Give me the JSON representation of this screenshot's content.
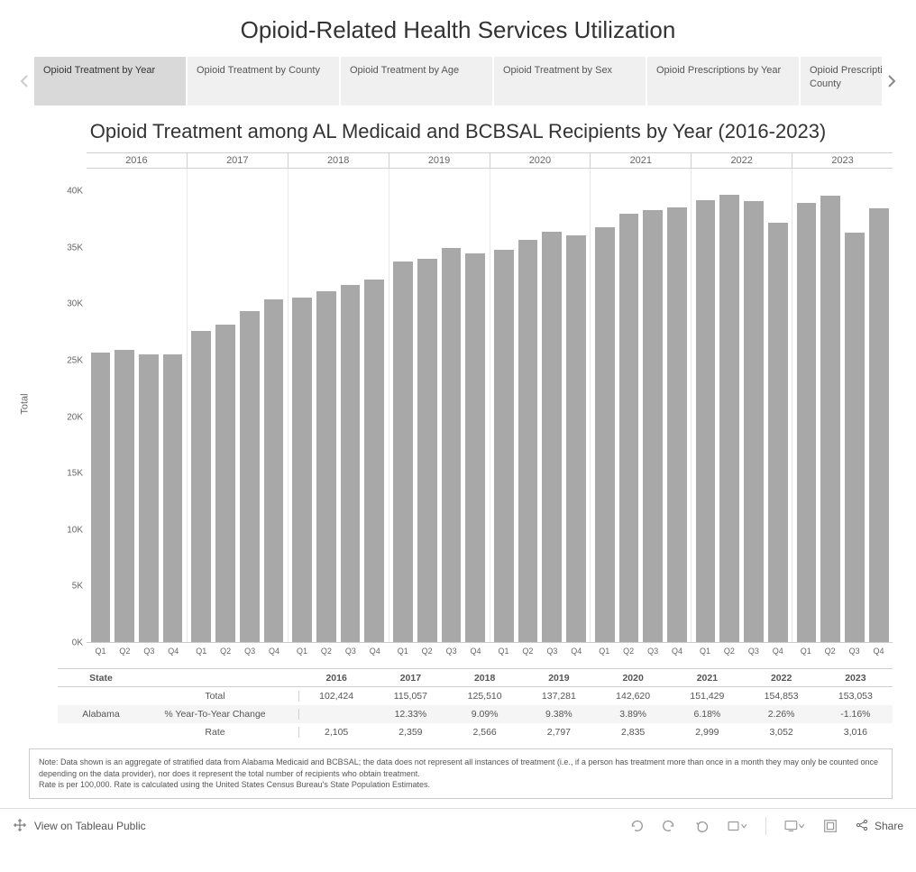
{
  "main_title": "Opioid-Related Health Services Utilization",
  "tabs": [
    {
      "label": "Opioid Treatment by Year",
      "active": true
    },
    {
      "label": "Opioid Treatment by County",
      "active": false
    },
    {
      "label": "Opioid Treatment by Age",
      "active": false
    },
    {
      "label": "Opioid Treatment by Sex",
      "active": false
    },
    {
      "label": "Opioid Prescriptions by Year",
      "active": false
    },
    {
      "label": "Opioid Prescriptions by County",
      "active": false
    }
  ],
  "chart": {
    "title": "Opioid Treatment among AL Medicaid and BCBSAL Recipients by Year (2016-2023)",
    "type": "bar",
    "bar_color": "#a8a8a8",
    "grid_color": "#e8e8e8",
    "background_color": "#ffffff",
    "y_label": "Total",
    "y_min": 0,
    "y_max": 42000,
    "y_ticks": [
      {
        "value": 0,
        "label": "0K"
      },
      {
        "value": 5000,
        "label": "5K"
      },
      {
        "value": 10000,
        "label": "10K"
      },
      {
        "value": 15000,
        "label": "15K"
      },
      {
        "value": 20000,
        "label": "20K"
      },
      {
        "value": 25000,
        "label": "25K"
      },
      {
        "value": 30000,
        "label": "30K"
      },
      {
        "value": 35000,
        "label": "35K"
      },
      {
        "value": 40000,
        "label": "40K"
      }
    ],
    "years": [
      "2016",
      "2017",
      "2018",
      "2019",
      "2020",
      "2021",
      "2022",
      "2023"
    ],
    "quarters": [
      "Q1",
      "Q2",
      "Q3",
      "Q4"
    ],
    "values": [
      [
        25700,
        25900,
        25500,
        25500
      ],
      [
        27600,
        28200,
        29400,
        30400
      ],
      [
        30600,
        31100,
        31700,
        32200
      ],
      [
        33800,
        34000,
        35000,
        34500
      ],
      [
        34800,
        35700,
        36400,
        36100
      ],
      [
        36800,
        38000,
        38300,
        38600
      ],
      [
        39200,
        39700,
        39100,
        37200
      ],
      [
        39000,
        39600,
        36300,
        38500
      ]
    ],
    "bar_width": 0.7,
    "font_size_ticks": 10,
    "font_size_title": 22
  },
  "table": {
    "state_header": "State",
    "state_value": "Alabama",
    "year_headers": [
      "2016",
      "2017",
      "2018",
      "2019",
      "2020",
      "2021",
      "2022",
      "2023"
    ],
    "rows": [
      {
        "label": "Total",
        "values": [
          "102,424",
          "115,057",
          "125,510",
          "137,281",
          "142,620",
          "151,429",
          "154,853",
          "153,053"
        ]
      },
      {
        "label": "% Year-To-Year Change",
        "values": [
          "",
          "12.33%",
          "9.09%",
          "9.38%",
          "3.89%",
          "6.18%",
          "2.26%",
          "-1.16%"
        ]
      },
      {
        "label": "Rate",
        "values": [
          "2,105",
          "2,359",
          "2,566",
          "2,797",
          "2,835",
          "2,999",
          "3,052",
          "3,016"
        ]
      }
    ]
  },
  "note": {
    "line1": "Note: Data shown is an aggregate of stratified data from Alabama Medicaid and BCBSAL; the data does not represent all instances of treatment (i.e., if a person has treatment more than once in a month they may only be counted once depending on the data provider), nor does it represent the total number of recipients who obtain treatment.",
    "line2": "Rate is per 100,000. Rate is calculated using the United States Census Bureau's State Population Estimates."
  },
  "footer": {
    "view_label": "View on Tableau Public",
    "share_label": "Share"
  }
}
